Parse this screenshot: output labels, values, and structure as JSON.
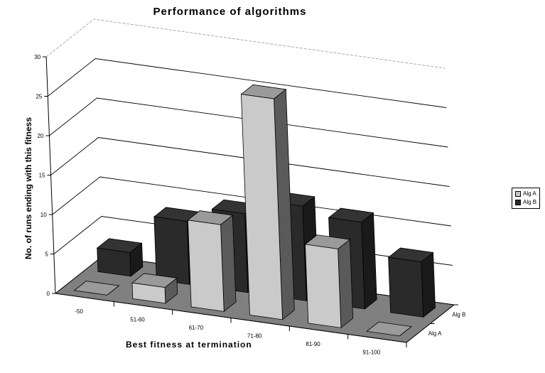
{
  "chart_data": {
    "type": "bar",
    "style": "3d-clustered-depth",
    "title": "Performance of algorithms",
    "xlabel": "Best fitness at termination",
    "ylabel": "No. of runs ending with this fitness",
    "categories": [
      "-50",
      "51-60",
      "61-70",
      "71-80",
      "81-90",
      "91-100"
    ],
    "series": [
      {
        "name": "Alg A",
        "values": [
          0,
          2,
          11,
          28,
          10,
          0
        ],
        "color": "#c8c8c8"
      },
      {
        "name": "Alg B",
        "values": [
          3,
          8,
          10,
          12,
          11,
          7
        ],
        "color": "#2a2a2a"
      }
    ],
    "ylim": [
      0,
      30
    ],
    "yticks": [
      0,
      5,
      10,
      15,
      20,
      25,
      30
    ],
    "depth_labels": [
      "Alg A",
      "Alg B"
    ],
    "grid": true,
    "legend_position": "right",
    "floor_color": "#808080"
  }
}
